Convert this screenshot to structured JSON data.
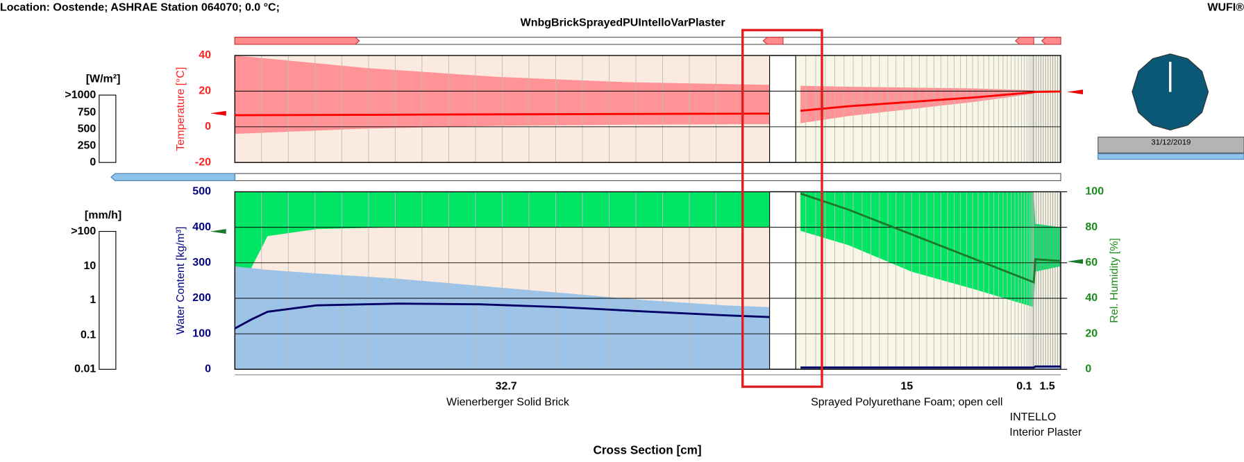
{
  "header": {
    "location": "Location: Oostende; ASHRAE Station 064070; 0.0 °C;",
    "brand": "WUFI®",
    "title": "WnbgBrickSprayedPUIntelloVarPlaster"
  },
  "flux_scale": {
    "unit": "[W/m²]",
    "labels": [
      ">1000",
      "750",
      "500",
      "250",
      "0"
    ]
  },
  "rain_scale": {
    "unit": "[mm/h]",
    "labels": [
      ">100",
      "10",
      "1",
      "0.1",
      "0.01"
    ]
  },
  "clock": {
    "date": "31/12/2019"
  },
  "layers": [
    {
      "thickness": 32.7,
      "name": "Wienerberger Solid Brick"
    },
    {
      "thickness": 15,
      "name": "Sprayed Polyurethane Foam; open cell"
    },
    {
      "thickness": 0.1,
      "name": "INTELLO"
    },
    {
      "thickness": 1.5,
      "name": "Interior Plaster"
    }
  ],
  "x_label": "Cross Section [cm]",
  "chart_data": [
    {
      "type": "line",
      "y_label": "Temperature [°C]",
      "ylim": [
        -20,
        40
      ],
      "yticks": [
        -20,
        0,
        20,
        40
      ],
      "grid": true,
      "tick_color": "#ff2020",
      "x": [
        0,
        8,
        16,
        24,
        32.7,
        33,
        36,
        40,
        44,
        47.7,
        47.8,
        49.3
      ],
      "series": [
        {
          "color": "#ff0000",
          "values": [
            6.5,
            6.7,
            7,
            7.2,
            7.4,
            9,
            11.5,
            14,
            16.5,
            19.4,
            19.6,
            19.8
          ]
        }
      ],
      "bands": [
        {
          "color": "#ff9396",
          "high": [
            40,
            33,
            28,
            25,
            23.5,
            23,
            22.5,
            22,
            21.5,
            20.5,
            20.2,
            20.2
          ],
          "low": [
            -4,
            -1,
            0.5,
            1.2,
            1.5,
            2,
            6,
            10,
            14,
            18.5,
            19.4,
            19.6
          ]
        }
      ]
    },
    {
      "type": "line",
      "y_label": "Water Content [kg/m³]",
      "y2_label": "Rel. Humidity [%]",
      "ylim": [
        0,
        500
      ],
      "yticks": [
        0,
        100,
        200,
        300,
        400,
        500
      ],
      "y2lim": [
        0,
        100
      ],
      "y2ticks": [
        0,
        20,
        40,
        60,
        80,
        100
      ],
      "grid": true,
      "tick_color": "#000080",
      "y2_tick_color": "#1a8a1a",
      "x": [
        0,
        1,
        2,
        5,
        10,
        15,
        20,
        25,
        30,
        32.7,
        33,
        36,
        40,
        44,
        47.7,
        47.8,
        49.3
      ],
      "series": [
        {
          "color": "#000066",
          "values": [
            115,
            140,
            162,
            180,
            185,
            183,
            175,
            163,
            152,
            147,
            5,
            5,
            5,
            5,
            5,
            8,
            8
          ]
        },
        {
          "color": "#1a7a2a",
          "axis": "y2",
          "values": [
            null,
            null,
            null,
            null,
            null,
            null,
            null,
            null,
            null,
            null,
            99,
            90,
            76,
            62,
            49,
            62,
            61
          ]
        }
      ],
      "bands": [
        {
          "color": "#00e664",
          "axis": "y2",
          "high": [
            100,
            100,
            100,
            100,
            100,
            100,
            100,
            100,
            100,
            100,
            100,
            100,
            100,
            100,
            100,
            82,
            80
          ],
          "low": [
            55,
            57,
            75,
            79,
            80,
            80,
            80,
            80,
            80,
            80,
            78,
            70,
            55,
            45,
            35,
            55,
            58
          ]
        },
        {
          "color": "#9dc3e6",
          "high": [
            290,
            285,
            280,
            270,
            255,
            235,
            215,
            195,
            180,
            175,
            8,
            8,
            8,
            8,
            8,
            10,
            10
          ],
          "low": [
            0,
            0,
            0,
            0,
            0,
            0,
            0,
            0,
            0,
            0,
            0,
            0,
            0,
            0,
            0,
            0,
            0
          ]
        }
      ]
    }
  ]
}
